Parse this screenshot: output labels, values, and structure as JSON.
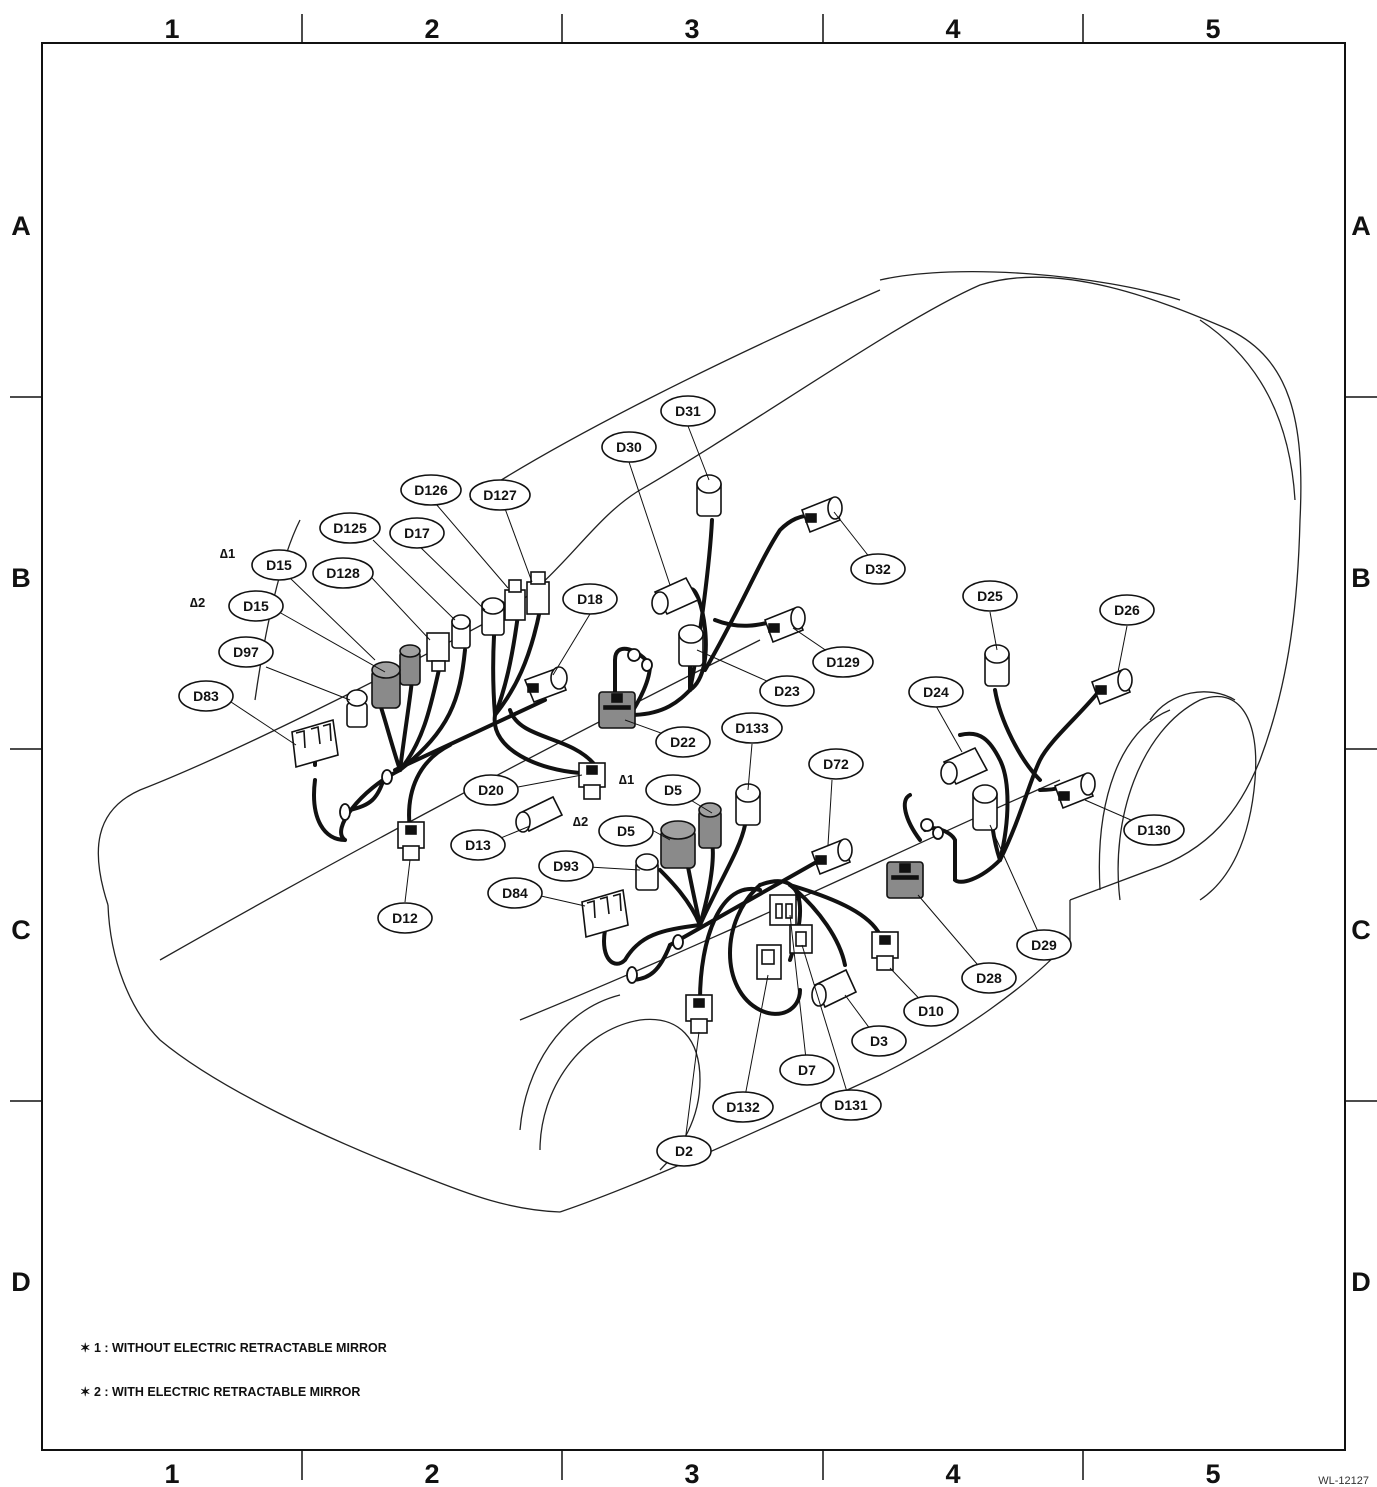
{
  "grid": {
    "columns": [
      "1",
      "2",
      "3",
      "4",
      "5"
    ],
    "rows": [
      "A",
      "B",
      "C",
      "D"
    ]
  },
  "callouts": [
    {
      "id": "D15-a",
      "label": "D15"
    },
    {
      "id": "D15-b",
      "label": "D15"
    },
    {
      "id": "D97",
      "label": "D97"
    },
    {
      "id": "D83",
      "label": "D83"
    },
    {
      "id": "D125",
      "label": "D125"
    },
    {
      "id": "D128",
      "label": "D128"
    },
    {
      "id": "D17",
      "label": "D17"
    },
    {
      "id": "D126",
      "label": "D126"
    },
    {
      "id": "D127",
      "label": "D127"
    },
    {
      "id": "D18",
      "label": "D18"
    },
    {
      "id": "D30",
      "label": "D30"
    },
    {
      "id": "D31",
      "label": "D31"
    },
    {
      "id": "D32",
      "label": "D32"
    },
    {
      "id": "D129",
      "label": "D129"
    },
    {
      "id": "D23",
      "label": "D23"
    },
    {
      "id": "D22",
      "label": "D22"
    },
    {
      "id": "D133",
      "label": "D133"
    },
    {
      "id": "D20",
      "label": "D20"
    },
    {
      "id": "D13",
      "label": "D13"
    },
    {
      "id": "D12",
      "label": "D12"
    },
    {
      "id": "D5-a",
      "label": "D5"
    },
    {
      "id": "D5-b",
      "label": "D5"
    },
    {
      "id": "D93",
      "label": "D93"
    },
    {
      "id": "D84",
      "label": "D84"
    },
    {
      "id": "D72",
      "label": "D72"
    },
    {
      "id": "D25",
      "label": "D25"
    },
    {
      "id": "D26",
      "label": "D26"
    },
    {
      "id": "D24",
      "label": "D24"
    },
    {
      "id": "D130",
      "label": "D130"
    },
    {
      "id": "D29",
      "label": "D29"
    },
    {
      "id": "D28",
      "label": "D28"
    },
    {
      "id": "D10",
      "label": "D10"
    },
    {
      "id": "D3",
      "label": "D3"
    },
    {
      "id": "D7",
      "label": "D7"
    },
    {
      "id": "D131",
      "label": "D131"
    },
    {
      "id": "D132",
      "label": "D132"
    },
    {
      "id": "D2",
      "label": "D2"
    }
  ],
  "variant_marks": [
    {
      "id": "star1-d15",
      "label": "∆1"
    },
    {
      "id": "star2-d15",
      "label": "∆2"
    },
    {
      "id": "star1-d5",
      "label": "∆1"
    },
    {
      "id": "star2-d5",
      "label": "∆2"
    }
  ],
  "notes": {
    "note1": "✶ 1 : WITHOUT ELECTRIC RETRACTABLE MIRROR",
    "note2": "✶ 2 : WITH ELECTRIC RETRACTABLE MIRROR"
  },
  "reference_code": "WL-12127"
}
